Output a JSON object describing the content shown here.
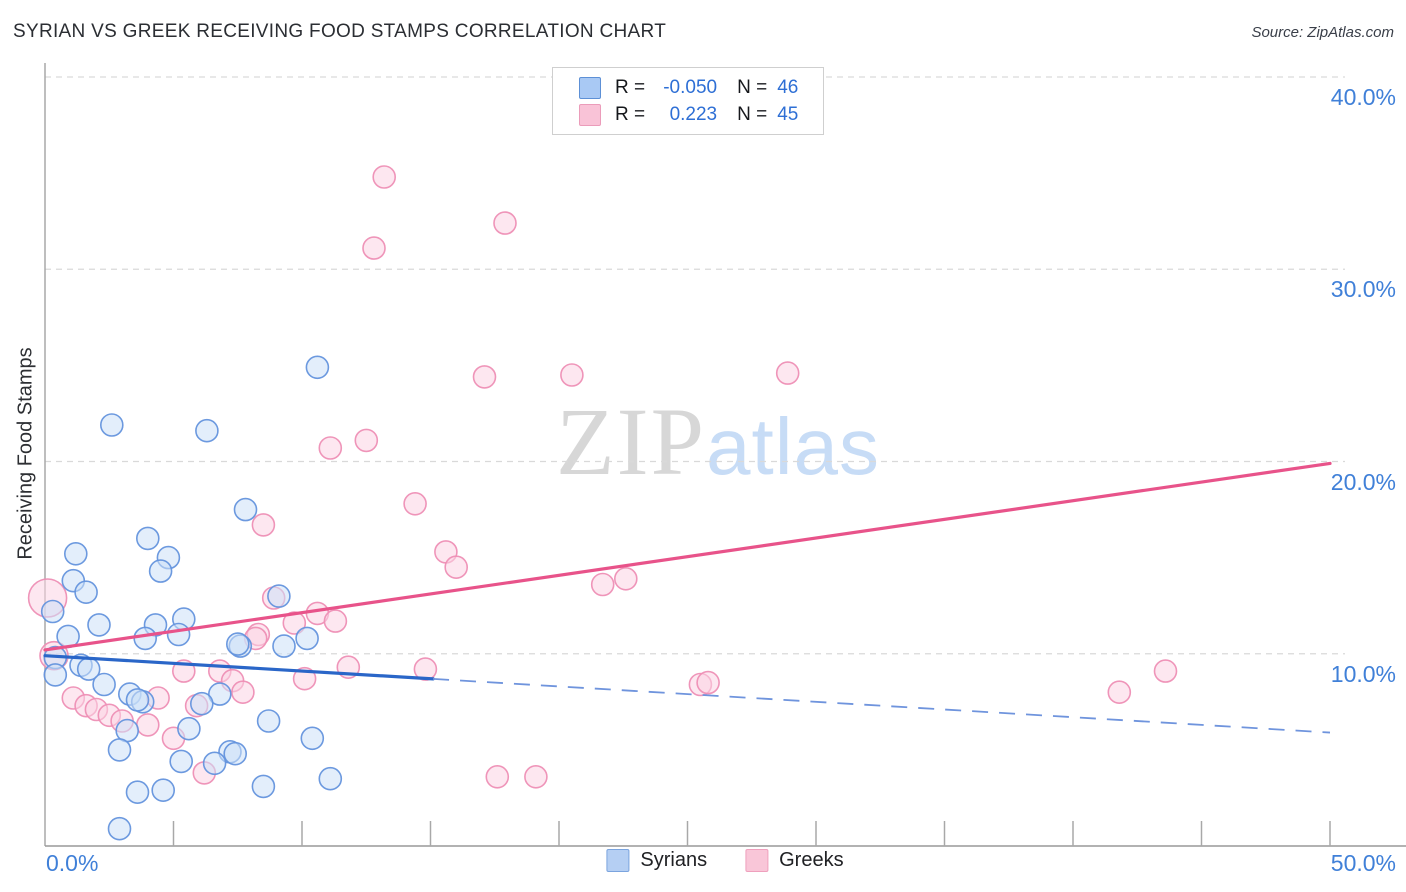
{
  "header": {
    "title": "SYRIAN VS GREEK RECEIVING FOOD STAMPS CORRELATION CHART",
    "source": "Source: ZipAtlas.com"
  },
  "watermark": {
    "part1": "ZIP",
    "part2": "atlas"
  },
  "legend_box": {
    "rows": [
      {
        "series": "Syrians",
        "r_label": "R =",
        "r_value": "-0.050",
        "n_label": "N =",
        "n_value": "46"
      },
      {
        "series": "Greeks",
        "r_label": "R =",
        "r_value": "0.223",
        "n_label": "N =",
        "n_value": "45"
      }
    ]
  },
  "bottom_legend": {
    "items": [
      {
        "label": "Syrians"
      },
      {
        "label": "Greeks"
      }
    ]
  },
  "axes": {
    "ylabel": "Receiving Food Stamps",
    "y_ticks": [
      {
        "label": "40.0%",
        "value": 40
      },
      {
        "label": "30.0%",
        "value": 30
      },
      {
        "label": "20.0%",
        "value": 20
      },
      {
        "label": "10.0%",
        "value": 10
      }
    ],
    "x_ticks": [
      {
        "label": "0.0%",
        "value": 0
      },
      {
        "label": "50.0%",
        "value": 50
      }
    ],
    "xlim": [
      0,
      50
    ],
    "ylim": [
      0,
      40
    ],
    "minor_x_tick_step": 5,
    "grid": "dashed-horizontal"
  },
  "colors": {
    "accent_text": "#4080d8",
    "syrians_fill": "#cce0f8",
    "syrians_stroke": "#6494dd",
    "syrians_line": "#2a66c8",
    "greeks_fill": "#fbd3e3",
    "greeks_stroke": "#ee8fb5",
    "greeks_line": "#e8538a",
    "gridline": "#d9d9d9",
    "axis": "#a8a8a8"
  },
  "chart_data": {
    "type": "scatter",
    "title": "SYRIAN VS GREEK RECEIVING FOOD STAMPS CORRELATION CHART",
    "xlabel": "",
    "ylabel": "Receiving Food Stamps",
    "xlim": [
      0,
      50
    ],
    "ylim": [
      0,
      40
    ],
    "legend_position": "bottom-center",
    "series": [
      {
        "name": "Syrians",
        "R": -0.05,
        "N": 46,
        "points": [
          [
            2.6,
            21.9
          ],
          [
            6.3,
            21.6
          ],
          [
            10.6,
            24.9
          ],
          [
            7.8,
            17.5
          ],
          [
            4.0,
            16.0
          ],
          [
            4.8,
            15.0
          ],
          [
            4.5,
            14.3
          ],
          [
            1.2,
            15.2
          ],
          [
            1.1,
            13.8
          ],
          [
            1.6,
            13.2
          ],
          [
            0.3,
            12.2
          ],
          [
            2.1,
            11.5
          ],
          [
            0.9,
            10.9
          ],
          [
            4.3,
            11.5
          ],
          [
            3.9,
            10.8
          ],
          [
            5.4,
            11.8
          ],
          [
            5.2,
            11.0
          ],
          [
            7.6,
            10.4
          ],
          [
            9.1,
            13.0
          ],
          [
            10.2,
            10.8
          ],
          [
            9.3,
            10.4
          ],
          [
            7.5,
            10.5
          ],
          [
            0.4,
            9.8
          ],
          [
            0.4,
            8.9
          ],
          [
            1.4,
            9.4
          ],
          [
            1.7,
            9.2
          ],
          [
            2.3,
            8.4
          ],
          [
            3.3,
            7.9
          ],
          [
            3.8,
            7.5
          ],
          [
            3.6,
            7.6
          ],
          [
            6.8,
            7.9
          ],
          [
            6.1,
            7.4
          ],
          [
            8.7,
            6.5
          ],
          [
            5.6,
            6.1
          ],
          [
            3.2,
            6.0
          ],
          [
            7.2,
            4.9
          ],
          [
            7.4,
            4.8
          ],
          [
            6.6,
            4.3
          ],
          [
            5.3,
            4.4
          ],
          [
            2.9,
            5.0
          ],
          [
            3.6,
            2.8
          ],
          [
            4.6,
            2.9
          ],
          [
            8.5,
            3.1
          ],
          [
            10.4,
            5.6
          ],
          [
            11.1,
            3.5
          ],
          [
            2.9,
            0.9
          ]
        ]
      },
      {
        "name": "Greeks",
        "R": 0.223,
        "N": 45,
        "points": [
          [
            13.2,
            34.8
          ],
          [
            17.9,
            32.4
          ],
          [
            12.8,
            31.1
          ],
          [
            11.1,
            20.7
          ],
          [
            12.5,
            21.1
          ],
          [
            14.4,
            17.8
          ],
          [
            17.1,
            24.4
          ],
          [
            20.5,
            24.5
          ],
          [
            28.9,
            24.6
          ],
          [
            15.6,
            15.3
          ],
          [
            16.0,
            14.5
          ],
          [
            21.7,
            13.6
          ],
          [
            22.6,
            13.9
          ],
          [
            8.5,
            16.7
          ],
          [
            8.9,
            12.9
          ],
          [
            10.6,
            12.1
          ],
          [
            11.3,
            11.7
          ],
          [
            9.7,
            11.6
          ],
          [
            8.3,
            11.0
          ],
          [
            11.8,
            9.3
          ],
          [
            14.8,
            9.2
          ],
          [
            10.1,
            8.7
          ],
          [
            17.6,
            3.6
          ],
          [
            19.1,
            3.6
          ],
          [
            25.5,
            8.4
          ],
          [
            25.8,
            8.5
          ],
          [
            41.8,
            8.0
          ],
          [
            43.6,
            9.1
          ],
          [
            0.1,
            12.9,
            19
          ],
          [
            0.35,
            9.9,
            14
          ],
          [
            5.4,
            9.1
          ],
          [
            6.8,
            9.1
          ],
          [
            7.3,
            8.6
          ],
          [
            7.7,
            8.0
          ],
          [
            8.2,
            10.8
          ],
          [
            4.4,
            7.7
          ],
          [
            5.0,
            5.6
          ],
          [
            5.9,
            7.3
          ],
          [
            6.2,
            3.8
          ],
          [
            1.1,
            7.7
          ],
          [
            1.6,
            7.3
          ],
          [
            2.0,
            7.1
          ],
          [
            2.5,
            6.8
          ],
          [
            3.0,
            6.5
          ],
          [
            4.0,
            6.3
          ]
        ]
      }
    ],
    "trend_lines": [
      {
        "series": "Syrians",
        "start": [
          0,
          9.9
        ],
        "end": [
          50,
          5.9
        ],
        "solid_until_x": 15.1,
        "style": "solid-then-dashed"
      },
      {
        "series": "Greeks",
        "start": [
          0,
          10.2
        ],
        "end": [
          50,
          19.9
        ],
        "style": "solid"
      }
    ]
  }
}
